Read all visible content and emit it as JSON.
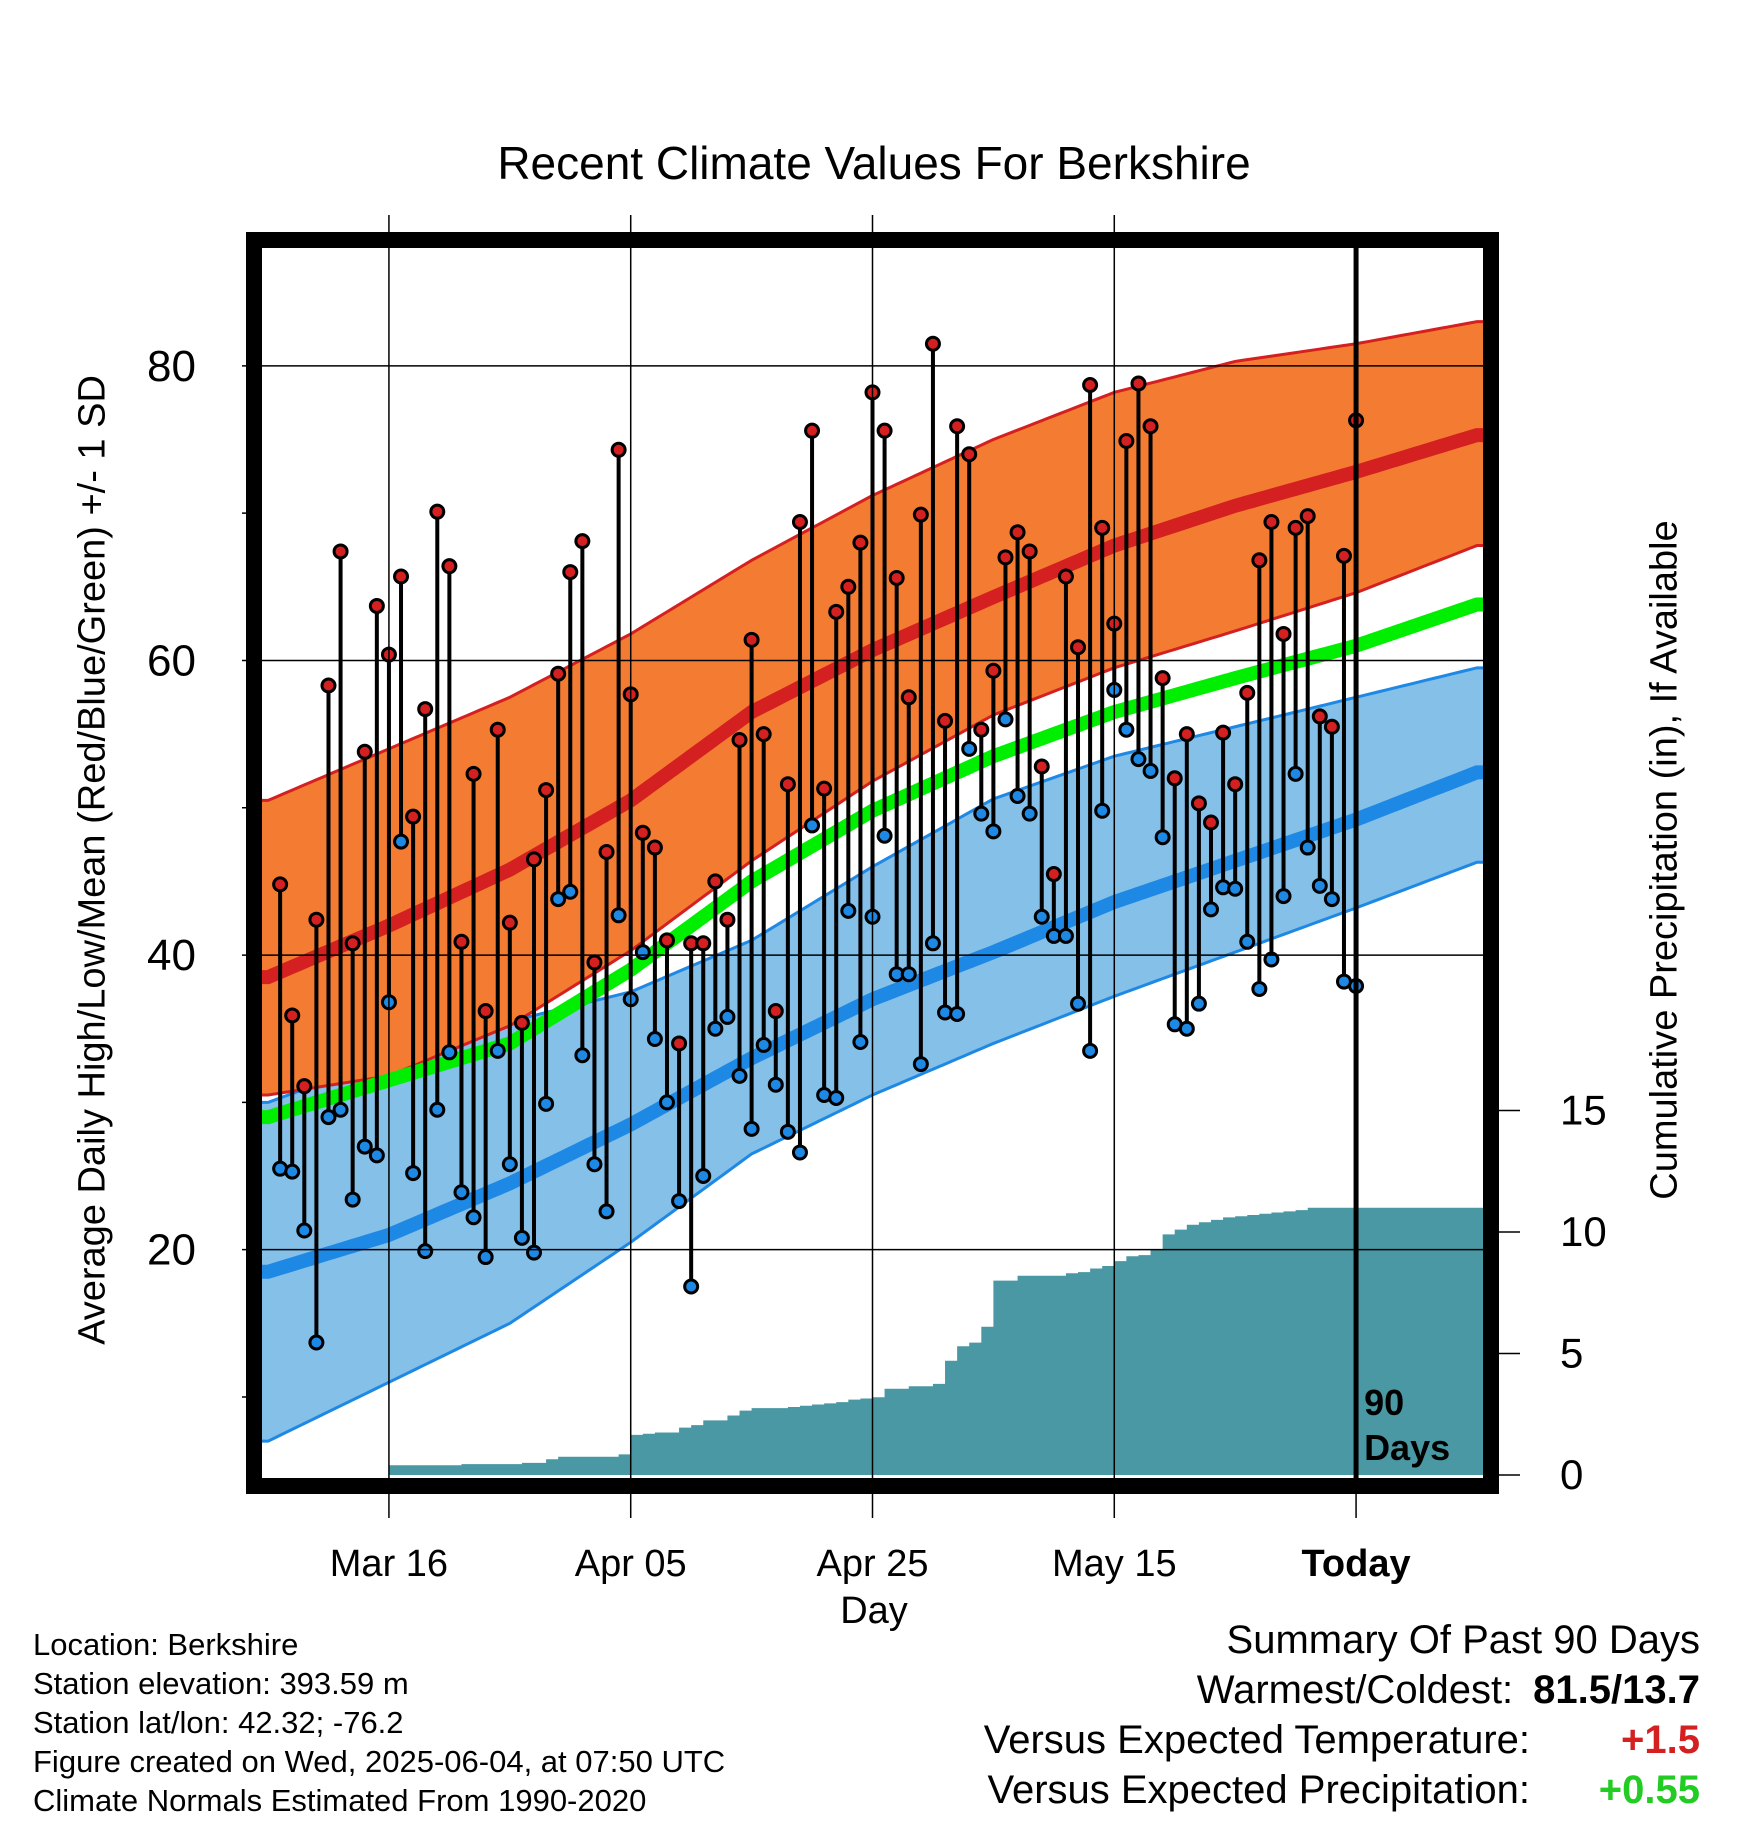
{
  "title": "Recent Climate Values For Berkshire",
  "xlabel": "Day",
  "ylabel_left": "Average Daily High/Low/Mean (Red/Blue/Green) +/- 1 SD",
  "ylabel_right": "Cumulative Precipitation (in), If Available",
  "period_label": [
    "90",
    "Days"
  ],
  "info": {
    "location": "Location: Berkshire",
    "elevation": "Station elevation: 393.59 m",
    "latlon": "Station lat/lon: 42.32; -76.2",
    "created": "Figure created on Wed, 2025-06-04, at 07:50 UTC",
    "normals": "Climate Normals Estimated From 1990-2020"
  },
  "summary": {
    "heading": "Summary Of Past 90 Days",
    "warmest_coldest_label": "Warmest/Coldest:",
    "warmest_coldest_value": "81.5/13.7",
    "temp_label": "Versus Expected Temperature:",
    "temp_value": "+1.5",
    "precip_label": "Versus Expected Precipitation:",
    "precip_value": "+0.55"
  },
  "colors": {
    "high_band": "#f47c32",
    "high_line": "#d42020",
    "low_band": "#84c0e8",
    "low_line": "#1e88e5",
    "mean_line": "#00ee00",
    "precip_fill": "#4a98a4",
    "high_dot": "#d42020",
    "low_dot": "#1e88e5"
  },
  "chart_data": {
    "type": "line",
    "x_ticks": [
      "Mar 16",
      "Apr 05",
      "Apr 25",
      "May 15",
      "Today"
    ],
    "x_tick_days": [
      10,
      30,
      50,
      70,
      90
    ],
    "x_range": [
      -0.5,
      100.5
    ],
    "y_left_range": [
      4.5,
      88
    ],
    "y_left_ticks": [
      20,
      40,
      60,
      80
    ],
    "y_right_ticks": [
      0,
      5,
      10,
      15
    ],
    "today_day": 90,
    "daily_high": [
      44.8,
      35.9,
      31.1,
      42.4,
      58.3,
      67.4,
      40.8,
      53.8,
      63.7,
      60.4,
      65.7,
      49.4,
      56.7,
      70.1,
      66.4,
      40.9,
      52.3,
      36.2,
      55.3,
      42.2,
      35.4,
      46.5,
      51.2,
      59.1,
      66.0,
      68.1,
      39.5,
      47.0,
      74.3,
      57.7,
      48.3,
      47.3,
      41.0,
      34.0,
      40.8,
      40.8,
      45.0,
      42.4,
      54.6,
      61.4,
      55.0,
      36.2,
      51.6,
      69.4,
      75.6,
      51.3,
      63.3,
      65.0,
      68.0,
      78.2,
      75.6,
      65.6,
      57.5,
      69.9,
      81.5,
      55.9,
      75.9,
      74.0,
      55.3,
      59.3,
      67.0,
      68.7,
      67.4,
      52.8,
      45.5,
      65.7,
      60.9,
      78.7,
      69.0,
      62.5,
      74.9,
      78.8,
      75.9,
      58.8,
      52.0,
      55.0,
      50.3,
      49.0,
      55.1,
      51.6,
      57.8,
      66.8,
      69.4,
      61.8,
      69.0,
      69.8,
      56.2,
      55.5,
      67.1,
      76.3
    ],
    "daily_low": [
      25.5,
      25.3,
      21.3,
      13.7,
      29.0,
      29.5,
      23.4,
      27.0,
      26.4,
      36.8,
      47.7,
      25.2,
      19.9,
      29.5,
      33.4,
      23.9,
      22.2,
      19.5,
      33.5,
      25.8,
      20.8,
      19.8,
      29.9,
      43.8,
      44.3,
      33.2,
      25.8,
      22.6,
      42.7,
      37.0,
      40.2,
      34.3,
      30.0,
      23.3,
      17.5,
      25.0,
      35.0,
      35.8,
      31.8,
      28.2,
      33.9,
      31.2,
      28.0,
      26.6,
      48.8,
      30.5,
      30.3,
      43.0,
      34.1,
      42.6,
      48.1,
      38.7,
      38.7,
      32.6,
      40.8,
      36.1,
      36.0,
      54.0,
      49.6,
      48.4,
      56.0,
      50.8,
      49.6,
      42.6,
      41.3,
      41.3,
      36.7,
      33.5,
      49.8,
      58.0,
      55.3,
      53.3,
      52.5,
      48.0,
      35.3,
      35.0,
      36.7,
      43.1,
      44.6,
      44.5,
      40.9,
      37.7,
      39.7,
      44.0,
      52.3,
      47.3,
      44.7,
      43.8,
      38.2,
      37.9
    ],
    "normal_high": {
      "day": [
        0,
        10,
        20,
        30,
        40,
        50,
        60,
        70,
        80,
        90,
        100
      ],
      "mean": [
        38.5,
        42.0,
        45.8,
        50.5,
        56.5,
        60.7,
        64.3,
        67.8,
        70.5,
        72.8,
        75.3
      ],
      "upper": [
        50.5,
        54.0,
        57.5,
        61.8,
        66.8,
        71.2,
        75.0,
        78.2,
        80.3,
        81.5,
        83.0
      ],
      "lower": [
        30.5,
        31.8,
        35.2,
        40.3,
        46.4,
        51.8,
        56.3,
        59.5,
        62.0,
        64.6,
        67.8
      ]
    },
    "normal_mean": {
      "day": [
        0,
        10,
        20,
        30,
        40,
        50,
        60,
        70,
        80,
        90,
        100
      ],
      "mean": [
        29.0,
        31.5,
        34.0,
        39.0,
        45.0,
        49.8,
        53.5,
        56.5,
        58.8,
        61.0,
        63.8
      ]
    },
    "normal_low": {
      "day": [
        0,
        10,
        20,
        30,
        40,
        50,
        60,
        70,
        80,
        90,
        100
      ],
      "mean": [
        18.5,
        21.0,
        24.5,
        28.5,
        33.0,
        37.0,
        40.2,
        43.6,
        46.4,
        49.2,
        52.4
      ],
      "upper": [
        30.0,
        33.0,
        35.5,
        37.5,
        41.0,
        46.0,
        50.6,
        53.5,
        55.5,
        57.5,
        59.5
      ],
      "lower": [
        7.0,
        11.0,
        15.0,
        20.5,
        26.5,
        30.5,
        34.0,
        37.2,
        40.2,
        43.2,
        46.3
      ]
    },
    "cumulative_precip": {
      "day": [
        0,
        9,
        10,
        15,
        16,
        20,
        21,
        22,
        23,
        24,
        25,
        29,
        30,
        31,
        32,
        33,
        34,
        35,
        36,
        37,
        38,
        39,
        40,
        41,
        42,
        43,
        44,
        45,
        46,
        47,
        48,
        49,
        50,
        51,
        52,
        53,
        54,
        55,
        56,
        57,
        58,
        59,
        60,
        61,
        62,
        63,
        64,
        65,
        66,
        67,
        68,
        69,
        70,
        71,
        72,
        73,
        74,
        75,
        76,
        77,
        78,
        79,
        80,
        81,
        82,
        83,
        84,
        85,
        86,
        87,
        88,
        89,
        90,
        100
      ],
      "values": [
        0,
        0,
        0.4,
        0.4,
        0.45,
        0.45,
        0.5,
        0.5,
        0.65,
        0.75,
        0.75,
        0.85,
        1.65,
        1.7,
        1.75,
        1.75,
        1.95,
        2.05,
        2.25,
        2.25,
        2.45,
        2.65,
        2.75,
        2.75,
        2.75,
        2.8,
        2.85,
        2.9,
        2.95,
        3.0,
        3.1,
        3.15,
        3.2,
        3.55,
        3.55,
        3.65,
        3.65,
        3.75,
        4.7,
        5.3,
        5.45,
        6.1,
        8.0,
        8.0,
        8.2,
        8.2,
        8.2,
        8.2,
        8.3,
        8.35,
        8.5,
        8.6,
        8.8,
        9.0,
        9.05,
        9.3,
        9.9,
        10.1,
        10.3,
        10.4,
        10.5,
        10.6,
        10.65,
        10.7,
        10.75,
        10.8,
        10.85,
        10.9,
        11.0,
        11.0,
        11.0,
        11.0,
        11.0,
        11.0
      ]
    }
  }
}
